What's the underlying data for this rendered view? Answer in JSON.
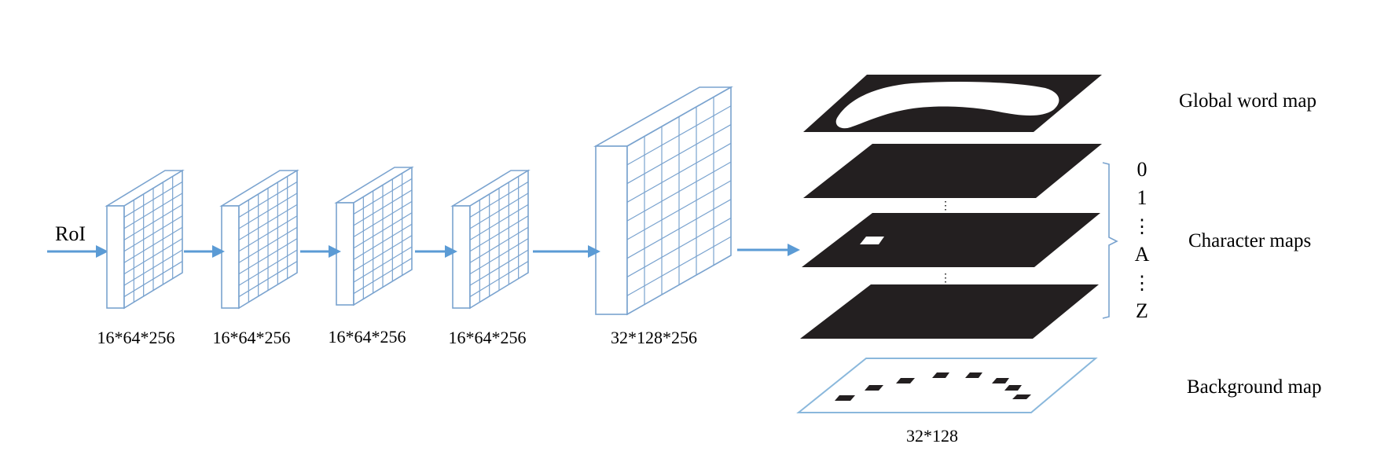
{
  "input": {
    "label": "RoI"
  },
  "feature_blocks": [
    {
      "label": "16*64*256"
    },
    {
      "label": "16*64*256"
    },
    {
      "label": "16*64*256"
    },
    {
      "label": "16*64*256"
    },
    {
      "label": "32*128*256"
    }
  ],
  "maps": {
    "global_label": "Global word map",
    "character_label": "Character maps",
    "background_label": "Background map",
    "size_label": "32*128",
    "character_indices": [
      "0",
      "1",
      "⋮",
      "A",
      "⋮",
      "Z"
    ],
    "between_dots": "⋮"
  },
  "colors": {
    "block_stroke": "#7aa3cf",
    "arrow": "#5b9bd5",
    "map_fill": "#231f20",
    "background_map_stroke": "#8ab8dc"
  }
}
